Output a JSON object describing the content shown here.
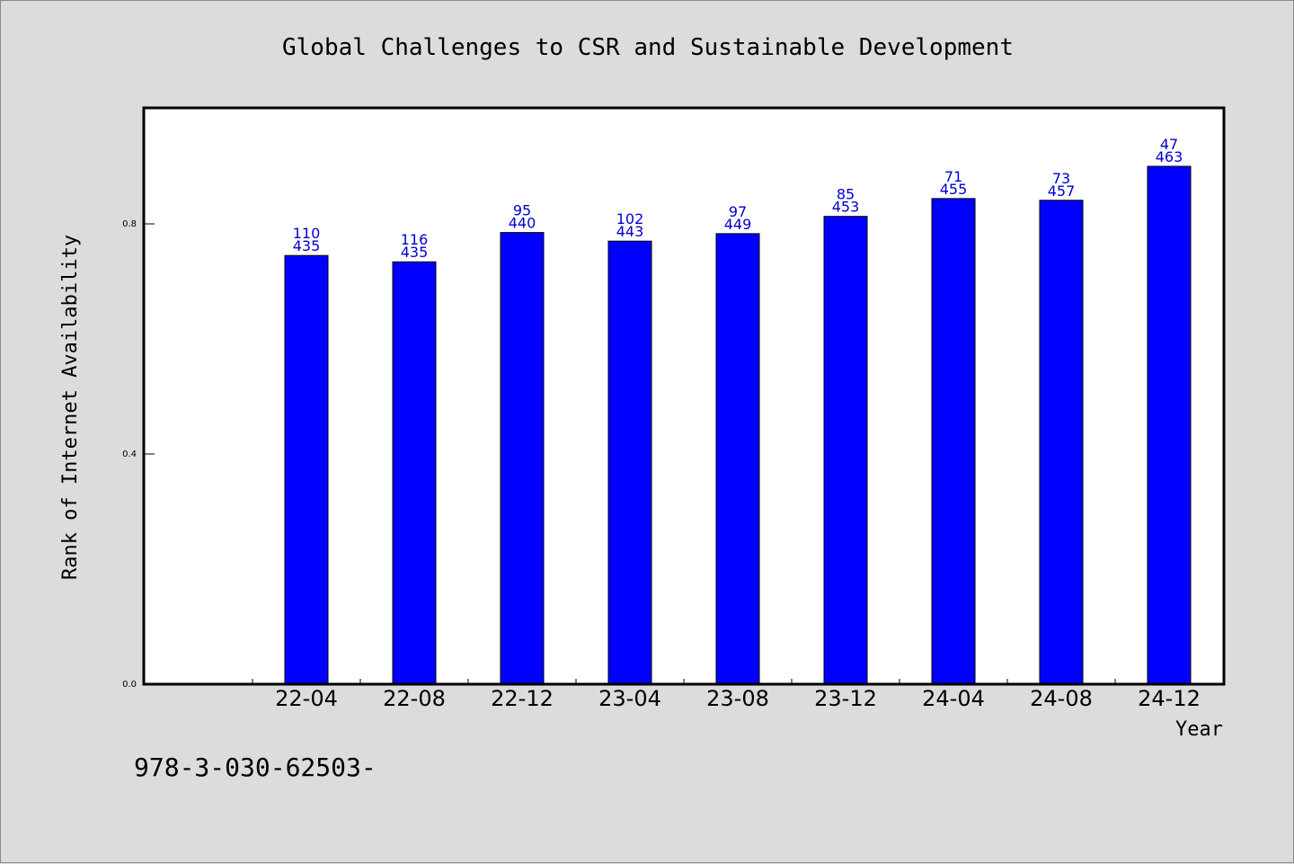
{
  "chart_data": {
    "type": "bar",
    "title": "Global Challenges to CSR and Sustainable Development",
    "xlabel": "Year",
    "ylabel": "Rank of Internet Availability",
    "categories": [
      "22-04",
      "22-08",
      "22-12",
      "23-04",
      "23-08",
      "23-12",
      "24-04",
      "24-08",
      "24-12"
    ],
    "values": [
      0.745,
      0.734,
      0.785,
      0.77,
      0.783,
      0.813,
      0.844,
      0.841,
      0.9
    ],
    "label_top": [
      "110",
      "116",
      "95",
      "102",
      "97",
      "85",
      "71",
      "73",
      "47"
    ],
    "label_bottom": [
      "435",
      "435",
      "440",
      "443",
      "449",
      "453",
      "455",
      "457",
      "463"
    ],
    "yticks": [
      "0.0",
      "0.4",
      "0.8"
    ],
    "ylim": [
      0,
      1.0
    ],
    "bar_color": "#0000ff",
    "label_color": "#0000cc"
  },
  "footer_text": "978-3-030-62503-"
}
